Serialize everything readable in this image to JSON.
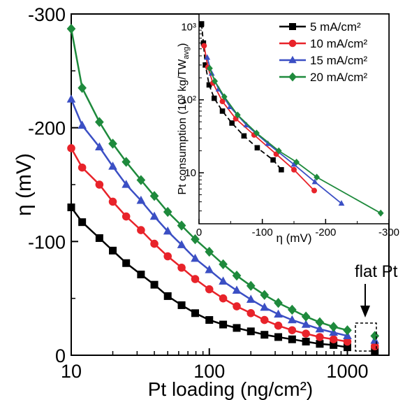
{
  "chart_data": [
    {
      "type": "line",
      "xscale": "log",
      "xlabel": "Pt loading (ng/cm²)",
      "ylabel": "η (mV)",
      "xlim": [
        10,
        2000
      ],
      "ylim": [
        0,
        -300
      ],
      "xticks": [
        {
          "value": 10,
          "label": "10"
        },
        {
          "value": 100,
          "label": "100"
        },
        {
          "value": 1000,
          "label": "1000"
        }
      ],
      "yticks": [
        {
          "value": 0,
          "label": "0"
        },
        {
          "value": -100,
          "label": "-100"
        },
        {
          "value": -200,
          "label": "-200"
        },
        {
          "value": -300,
          "label": "-300"
        }
      ],
      "x": [
        10,
        12,
        16,
        20,
        25,
        32,
        40,
        50,
        63,
        79,
        100,
        126,
        158,
        200,
        251,
        316,
        398,
        501,
        631,
        794,
        1000
      ],
      "series": [
        {
          "name": "5 mA/cm²",
          "color": "#000000",
          "marker": "square",
          "values": [
            -130,
            -117,
            -103,
            -92,
            -81,
            -71,
            -62,
            -52,
            -44,
            -37,
            -31,
            -27,
            -24,
            -21,
            -18,
            -16,
            -14,
            -12,
            -10,
            -9,
            -7
          ]
        },
        {
          "name": "10 mA/cm²",
          "color": "#e8232a",
          "marker": "circle",
          "values": [
            -182,
            -165,
            -150,
            -135,
            -122,
            -110,
            -98,
            -87,
            -77,
            -67,
            -58,
            -50,
            -43,
            -37,
            -31,
            -26,
            -22,
            -19,
            -16,
            -14,
            -12
          ]
        },
        {
          "name": "15 mA/cm²",
          "color": "#3b4fc4",
          "marker": "triangle",
          "values": [
            -225,
            -202,
            -183,
            -166,
            -150,
            -136,
            -122,
            -109,
            -97,
            -85,
            -75,
            -65,
            -57,
            -49,
            -42,
            -36,
            -31,
            -27,
            -23,
            -20,
            -17
          ]
        },
        {
          "name": "20 mA/cm²",
          "color": "#1e8a3c",
          "marker": "diamond",
          "values": [
            -287,
            -235,
            -205,
            -186,
            -170,
            -154,
            -140,
            -126,
            -114,
            -102,
            -91,
            -80,
            -70,
            -61,
            -53,
            -46,
            -40,
            -34,
            -29,
            -25,
            -22
          ]
        }
      ],
      "flat_pt": {
        "label": "flat Pt",
        "x": 1580,
        "values": [
          -4,
          -8,
          -13,
          -17
        ]
      }
    },
    {
      "type": "line",
      "yscale": "log",
      "xlabel": "η (mV)",
      "ylabel": "Pt consumption (10³ kg/TW",
      "ylabel_subscript": "avg",
      "ylabel_close": ")",
      "xlim": [
        0,
        -300
      ],
      "ylim": [
        2,
        1500
      ],
      "xticks": [
        {
          "value": 0,
          "label": "0"
        },
        {
          "value": -100,
          "label": "-100"
        },
        {
          "value": -200,
          "label": "-200"
        },
        {
          "value": -300,
          "label": "-300"
        }
      ],
      "yticks": [
        {
          "value": 10,
          "label": "10"
        },
        {
          "value": 100,
          "label": "10²"
        },
        {
          "value": 1000,
          "label": "10³"
        }
      ],
      "series": [
        {
          "name": "5 mA/cm²",
          "color": "#000000",
          "marker": "square",
          "x": [
            -4,
            -7,
            -10,
            -16,
            -24,
            -37,
            -52,
            -71,
            -92,
            -117,
            -130
          ],
          "y": [
            1100,
            600,
            300,
            160,
            105,
            70,
            48,
            32,
            22,
            15,
            11
          ]
        },
        {
          "name": "10 mA/cm²",
          "color": "#e8232a",
          "marker": "circle",
          "x": [
            -8,
            -14,
            -22,
            -37,
            -58,
            -87,
            -122,
            -150,
            -182
          ],
          "y": [
            550,
            280,
            170,
            95,
            55,
            33,
            18,
            11,
            5.7
          ]
        },
        {
          "name": "15 mA/cm²",
          "color": "#3b4fc4",
          "marker": "triangle",
          "x": [
            -13,
            -20,
            -31,
            -49,
            -75,
            -109,
            -150,
            -183,
            -225
          ],
          "y": [
            380,
            230,
            140,
            80,
            45,
            25,
            13,
            7.5,
            3.8
          ]
        },
        {
          "name": "20 mA/cm²",
          "color": "#1e8a3c",
          "marker": "diamond",
          "x": [
            -17,
            -25,
            -40,
            -61,
            -91,
            -126,
            -154,
            -186,
            -287
          ],
          "y": [
            270,
            180,
            110,
            62,
            35,
            20,
            14,
            8.7,
            2.8
          ]
        }
      ]
    }
  ]
}
